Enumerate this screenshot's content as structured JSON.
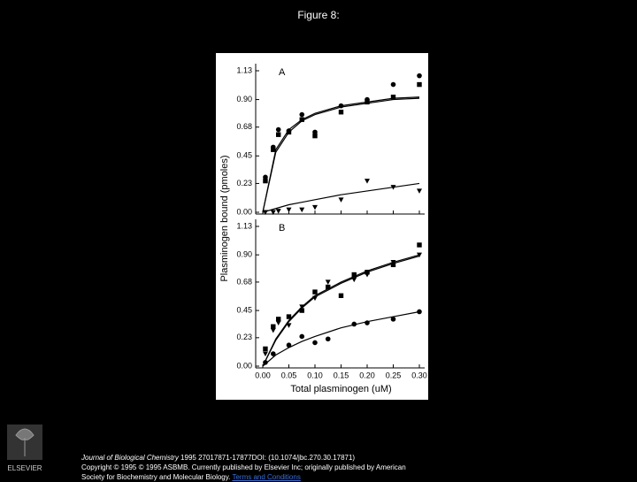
{
  "title": "Figure 8:",
  "chart_data": [
    {
      "type": "scatter",
      "panel_label": "A",
      "ylabel": "Plasminogen bound (pmoles)",
      "xlim": [
        0,
        0.3
      ],
      "xticks": [
        0,
        0.05,
        0.1,
        0.15,
        0.2,
        0.25,
        0.3
      ],
      "ylim": [
        0,
        1.13
      ],
      "yticks": [
        {
          "value": 0,
          "label": "0.00"
        },
        0.23,
        0.45,
        0.68,
        {
          "value": 0.9,
          "label": "0.90"
        },
        1.13
      ],
      "series": [
        {
          "marker": "circle",
          "color": "#000000",
          "x": [
            0.005,
            0.02,
            0.03,
            0.05,
            0.075,
            0.1,
            0.15,
            0.2,
            0.25,
            0.3
          ],
          "values": [
            0.28,
            0.52,
            0.66,
            0.65,
            0.78,
            0.64,
            0.85,
            0.9,
            1.02,
            1.09
          ]
        },
        {
          "marker": "square",
          "color": "#000000",
          "x": [
            0.005,
            0.02,
            0.03,
            0.05,
            0.075,
            0.1,
            0.15,
            0.2,
            0.25,
            0.3
          ],
          "values": [
            0.25,
            0.5,
            0.62,
            0.64,
            0.74,
            0.61,
            0.8,
            0.88,
            0.92,
            1.02
          ]
        },
        {
          "marker": "triangle",
          "color": "#000000",
          "x": [
            0.005,
            0.02,
            0.03,
            0.05,
            0.075,
            0.1,
            0.15,
            0.2,
            0.25,
            0.3
          ],
          "values": [
            0,
            0,
            0.01,
            0.02,
            0.02,
            0.04,
            0.1,
            0.25,
            0.2,
            0.17
          ]
        }
      ],
      "curves": [
        {
          "color": "#000000",
          "x": [
            0,
            0.025,
            0.05,
            0.075,
            0.1,
            0.15,
            0.2,
            0.25,
            0.3
          ],
          "values": [
            0,
            0.5,
            0.66,
            0.74,
            0.79,
            0.85,
            0.88,
            0.91,
            0.92
          ]
        },
        {
          "color": "#000000",
          "x": [
            0,
            0.025,
            0.05,
            0.075,
            0.1,
            0.15,
            0.2,
            0.25,
            0.3
          ],
          "values": [
            0,
            0.48,
            0.64,
            0.73,
            0.78,
            0.84,
            0.87,
            0.9,
            0.91
          ]
        },
        {
          "color": "#000000",
          "x": [
            0,
            0.025,
            0.05,
            0.075,
            0.1,
            0.15,
            0.2,
            0.25,
            0.3
          ],
          "values": [
            0,
            0.03,
            0.06,
            0.08,
            0.1,
            0.14,
            0.17,
            0.2,
            0.23
          ]
        }
      ]
    },
    {
      "type": "scatter",
      "panel_label": "B",
      "xlabel": "Total plasminogen (uM)",
      "xlim": [
        0,
        0.3
      ],
      "xticks": [
        {
          "value": 0,
          "label": "0.00"
        },
        0.05,
        {
          "value": 0.1,
          "label": "0.10"
        },
        0.15,
        {
          "value": 0.2,
          "label": "0.20"
        },
        0.25,
        {
          "value": 0.3,
          "label": "0.30"
        }
      ],
      "ylim": [
        0,
        1.13
      ],
      "yticks": [
        {
          "value": 0,
          "label": "0.00"
        },
        0.23,
        0.45,
        0.68,
        {
          "value": 0.9,
          "label": "0.90"
        },
        1.13
      ],
      "series": [
        {
          "marker": "square",
          "color": "#000000",
          "x": [
            0.005,
            0.02,
            0.03,
            0.05,
            0.075,
            0.1,
            0.125,
            0.15,
            0.175,
            0.2,
            0.25,
            0.3
          ],
          "values": [
            0.14,
            0.32,
            0.38,
            0.4,
            0.45,
            0.6,
            0.64,
            0.57,
            0.74,
            0.76,
            0.82,
            0.98
          ]
        },
        {
          "marker": "triangle",
          "color": "#000000",
          "x": [
            0.005,
            0.02,
            0.03,
            0.05,
            0.075,
            0.1,
            0.125,
            0.175,
            0.2,
            0.25,
            0.3
          ],
          "values": [
            0.1,
            0.29,
            0.35,
            0.33,
            0.48,
            0.55,
            0.68,
            0.7,
            0.74,
            0.84,
            0.9
          ]
        },
        {
          "marker": "circle",
          "color": "#000000",
          "x": [
            0.005,
            0.02,
            0.05,
            0.075,
            0.1,
            0.125,
            0.175,
            0.2,
            0.25,
            0.3
          ],
          "values": [
            0.03,
            0.1,
            0.17,
            0.24,
            0.19,
            0.22,
            0.34,
            0.35,
            0.38,
            0.44
          ]
        }
      ],
      "curves": [
        {
          "color": "#000000",
          "x": [
            0,
            0.025,
            0.05,
            0.075,
            0.1,
            0.15,
            0.2,
            0.25,
            0.3
          ],
          "values": [
            0,
            0.22,
            0.37,
            0.48,
            0.57,
            0.68,
            0.77,
            0.84,
            0.9
          ]
        },
        {
          "color": "#000000",
          "x": [
            0,
            0.025,
            0.05,
            0.075,
            0.1,
            0.15,
            0.2,
            0.25,
            0.3
          ],
          "values": [
            0,
            0.21,
            0.36,
            0.47,
            0.56,
            0.67,
            0.76,
            0.83,
            0.89
          ]
        },
        {
          "color": "#000000",
          "x": [
            0,
            0.025,
            0.05,
            0.075,
            0.1,
            0.15,
            0.2,
            0.25,
            0.3
          ],
          "values": [
            0,
            0.09,
            0.15,
            0.2,
            0.24,
            0.31,
            0.36,
            0.4,
            0.44
          ]
        }
      ]
    }
  ],
  "footer": {
    "journal": "Journal of Biological Chemistry",
    "citation": " 1995 27017871-17877DOI: (10.1074/jbc.270.30.17871)",
    "copyright_1": "Copyright © 1995 © 1995 ASBMB. Currently published by Elsevier Inc; originally published by American",
    "copyright_2": "Society for Biochemistry and Molecular Biology. ",
    "link": "Terms and Conditions"
  },
  "logo": "ELSEVIER"
}
